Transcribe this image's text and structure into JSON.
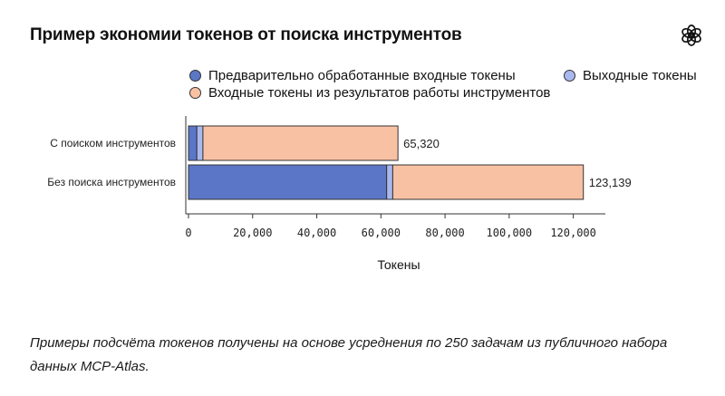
{
  "header": {
    "title": "Пример экономии токенов от поиска инструментов",
    "logo_icon": "openai-logo-icon"
  },
  "chart_data": {
    "type": "bar",
    "orientation": "horizontal",
    "stacked": true,
    "categories": [
      "С поиском инструментов",
      "Без поиска инструментов"
    ],
    "series": [
      {
        "name": "Предварительно обработанные входные токены",
        "color": "#5b76c6",
        "values": [
          2600,
          61800
        ]
      },
      {
        "name": "Выходные токены",
        "color": "#a9b9f0",
        "values": [
          1900,
          1900
        ]
      },
      {
        "name": "Входные токены из результатов работы инструментов",
        "color": "#f9c1a4",
        "values": [
          60820,
          59439
        ]
      }
    ],
    "totals": [
      65320,
      123139
    ],
    "total_labels": [
      "65,320",
      "123,139"
    ],
    "xlabel": "Токены",
    "xlim": [
      0,
      130000
    ],
    "xticks": [
      0,
      20000,
      40000,
      60000,
      80000,
      100000,
      120000
    ],
    "xtick_labels": [
      "0",
      "20,000",
      "40,000",
      "60,000",
      "80,000",
      "100,000",
      "120,000"
    ],
    "legend_position": "top",
    "grid": false
  },
  "caption": {
    "text": "Примеры подсчёта токенов получены на основе усреднения по 250 задачам из публичного набора данных MCP-Atlas."
  }
}
